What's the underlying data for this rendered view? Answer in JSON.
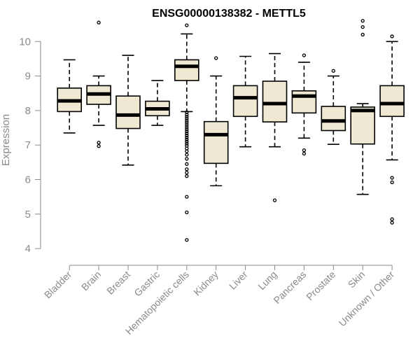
{
  "chart_data": {
    "type": "boxplot",
    "title": "ENSG00000138382 - METTL5",
    "ylabel": "Expression",
    "xlabel": "",
    "ylim": [
      4,
      10.7
    ],
    "yticks": [
      4,
      5,
      6,
      7,
      8,
      9,
      10
    ],
    "box_color": "#efe8d2",
    "categories": [
      "Bladder",
      "Brain",
      "Breast",
      "Gastric",
      "Hematopoietic cells",
      "Kidney",
      "Liver",
      "Lung",
      "Pancreas",
      "Prostate",
      "Skin",
      "Unknown / Other"
    ],
    "boxes": [
      {
        "q1": 7.97,
        "median": 8.28,
        "q3": 8.65,
        "whisker_low": 7.35,
        "whisker_high": 9.47,
        "outliers": []
      },
      {
        "q1": 8.18,
        "median": 8.48,
        "q3": 8.72,
        "whisker_low": 7.57,
        "whisker_high": 9.0,
        "outliers": [
          10.55,
          7.07,
          6.97
        ]
      },
      {
        "q1": 7.48,
        "median": 7.87,
        "q3": 8.42,
        "whisker_low": 6.42,
        "whisker_high": 9.6,
        "outliers": []
      },
      {
        "q1": 7.85,
        "median": 8.05,
        "q3": 8.27,
        "whisker_low": 7.57,
        "whisker_high": 8.87,
        "outliers": []
      },
      {
        "q1": 8.87,
        "median": 9.28,
        "q3": 9.47,
        "whisker_low": 7.97,
        "whisker_high": 10.22,
        "outliers": [
          10.47,
          7.95,
          7.88,
          7.82,
          7.76,
          7.7,
          7.64,
          7.58,
          7.52,
          7.46,
          7.4,
          7.34,
          7.28,
          7.22,
          7.16,
          7.1,
          7.04,
          6.98,
          6.9,
          6.82,
          6.72,
          6.6,
          6.45,
          6.3,
          6.2,
          6.1,
          5.5,
          5.05,
          4.25
        ]
      },
      {
        "q1": 6.47,
        "median": 7.3,
        "q3": 7.68,
        "whisker_low": 5.82,
        "whisker_high": 9.0,
        "outliers": [
          9.52
        ]
      },
      {
        "q1": 7.83,
        "median": 8.37,
        "q3": 8.72,
        "whisker_low": 6.95,
        "whisker_high": 9.57,
        "outliers": []
      },
      {
        "q1": 7.67,
        "median": 8.2,
        "q3": 8.85,
        "whisker_low": 6.95,
        "whisker_high": 9.65,
        "outliers": [
          5.4
        ]
      },
      {
        "q1": 7.93,
        "median": 8.42,
        "q3": 8.57,
        "whisker_low": 7.2,
        "whisker_high": 9.4,
        "outliers": [
          9.6,
          6.85,
          6.75
        ]
      },
      {
        "q1": 7.42,
        "median": 7.7,
        "q3": 8.12,
        "whisker_low": 7.02,
        "whisker_high": 9.0,
        "outliers": [
          9.15
        ]
      },
      {
        "q1": 7.03,
        "median": 8.0,
        "q3": 8.1,
        "whisker_low": 5.57,
        "whisker_high": 8.2,
        "outliers": [
          10.6,
          10.42,
          10.2
        ]
      },
      {
        "q1": 7.83,
        "median": 8.2,
        "q3": 8.72,
        "whisker_low": 6.57,
        "whisker_high": 10.0,
        "outliers": [
          10.15,
          6.05,
          5.92,
          4.85,
          4.75
        ]
      }
    ]
  }
}
